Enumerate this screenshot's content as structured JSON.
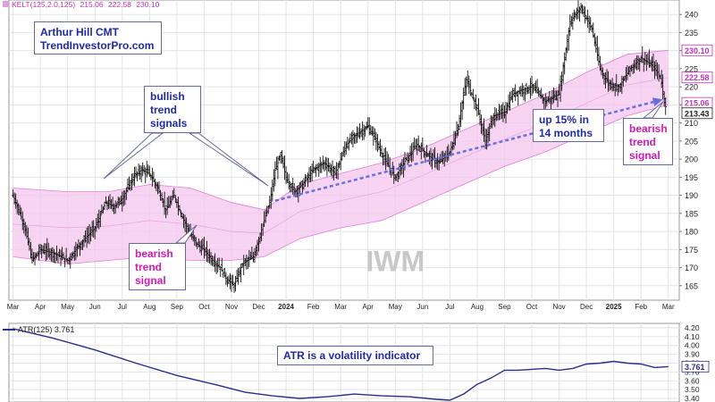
{
  "chart_data": [
    {
      "type": "candlestick",
      "symbol": "IWM",
      "overlay_label": "KELT(125,2.0,125)",
      "overlay_values": [
        "215.06",
        "222.58",
        "230.10"
      ],
      "ylim": [
        161,
        244
      ],
      "yticks": [
        165,
        170,
        175,
        180,
        185,
        190,
        195,
        200,
        205,
        210,
        215,
        220,
        225,
        230,
        235,
        240
      ],
      "xticks": [
        {
          "label": "Mar",
          "x": 0.0,
          "bold": false
        },
        {
          "label": "Apr",
          "x": 1.0,
          "bold": false
        },
        {
          "label": "May",
          "x": 2.0,
          "bold": false
        },
        {
          "label": "Jun",
          "x": 3.0,
          "bold": false
        },
        {
          "label": "Jul",
          "x": 4.0,
          "bold": false
        },
        {
          "label": "Aug",
          "x": 5.0,
          "bold": false
        },
        {
          "label": "Sep",
          "x": 6.0,
          "bold": false
        },
        {
          "label": "Oct",
          "x": 7.0,
          "bold": false
        },
        {
          "label": "Nov",
          "x": 8.0,
          "bold": false
        },
        {
          "label": "Dec",
          "x": 9.0,
          "bold": false
        },
        {
          "label": "2024",
          "x": 10.0,
          "bold": true
        },
        {
          "label": "Feb",
          "x": 11.0,
          "bold": false
        },
        {
          "label": "Mar",
          "x": 12.0,
          "bold": false
        },
        {
          "label": "Apr",
          "x": 13.0,
          "bold": false
        },
        {
          "label": "May",
          "x": 14.0,
          "bold": false
        },
        {
          "label": "Jun",
          "x": 15.0,
          "bold": false
        },
        {
          "label": "Jul",
          "x": 16.0,
          "bold": false
        },
        {
          "label": "Aug",
          "x": 17.0,
          "bold": false
        },
        {
          "label": "Sep",
          "x": 18.0,
          "bold": false
        },
        {
          "label": "Oct",
          "x": 19.0,
          "bold": false
        },
        {
          "label": "Nov",
          "x": 20.0,
          "bold": false
        },
        {
          "label": "Dec",
          "x": 21.0,
          "bold": false
        },
        {
          "label": "2025",
          "x": 22.0,
          "bold": true
        },
        {
          "label": "Feb",
          "x": 23.0,
          "bold": false
        },
        {
          "label": "Mar",
          "x": 24.0,
          "bold": false
        }
      ],
      "price_path": [
        [
          0.0,
          190
        ],
        [
          0.4,
          182
        ],
        [
          0.7,
          172
        ],
        [
          1.0,
          175
        ],
        [
          1.5,
          174
        ],
        [
          2.0,
          172
        ],
        [
          2.5,
          177
        ],
        [
          3.0,
          181
        ],
        [
          3.4,
          188
        ],
        [
          3.7,
          187
        ],
        [
          4.0,
          189
        ],
        [
          4.4,
          195
        ],
        [
          4.7,
          197
        ],
        [
          5.0,
          196
        ],
        [
          5.3,
          192
        ],
        [
          5.6,
          186
        ],
        [
          5.9,
          190
        ],
        [
          6.2,
          184
        ],
        [
          6.5,
          179
        ],
        [
          6.8,
          176
        ],
        [
          7.0,
          175
        ],
        [
          7.3,
          172
        ],
        [
          7.6,
          170
        ],
        [
          7.8,
          167
        ],
        [
          8.1,
          165
        ],
        [
          8.4,
          171
        ],
        [
          8.8,
          173
        ],
        [
          9.0,
          178
        ],
        [
          9.2,
          183
        ],
        [
          9.4,
          188
        ],
        [
          9.6,
          197
        ],
        [
          9.8,
          201
        ],
        [
          10.0,
          195
        ],
        [
          10.3,
          191
        ],
        [
          10.6,
          193
        ],
        [
          11.0,
          197
        ],
        [
          11.4,
          199
        ],
        [
          11.8,
          196
        ],
        [
          12.2,
          204
        ],
        [
          12.6,
          207
        ],
        [
          13.0,
          209
        ],
        [
          13.3,
          205
        ],
        [
          13.6,
          200
        ],
        [
          14.0,
          195
        ],
        [
          14.4,
          200
        ],
        [
          14.8,
          204
        ],
        [
          15.2,
          201
        ],
        [
          15.6,
          199
        ],
        [
          16.0,
          202
        ],
        [
          16.3,
          209
        ],
        [
          16.6,
          222
        ],
        [
          17.0,
          214
        ],
        [
          17.3,
          205
        ],
        [
          17.6,
          212
        ],
        [
          18.0,
          213
        ],
        [
          18.3,
          218
        ],
        [
          18.6,
          219
        ],
        [
          19.0,
          220
        ],
        [
          19.5,
          216
        ],
        [
          20.0,
          218
        ],
        [
          20.4,
          238
        ],
        [
          20.8,
          242
        ],
        [
          21.2,
          236
        ],
        [
          21.5,
          225
        ],
        [
          21.8,
          221
        ],
        [
          22.2,
          220
        ],
        [
          22.6,
          225
        ],
        [
          23.0,
          228
        ],
        [
          23.4,
          226
        ],
        [
          23.7,
          223
        ],
        [
          23.9,
          214.5
        ]
      ],
      "band": {
        "color": "#f4c6ee",
        "upper": [
          [
            0.0,
            192
          ],
          [
            2.0,
            191
          ],
          [
            3.5,
            191
          ],
          [
            5.0,
            193
          ],
          [
            6.5,
            192
          ],
          [
            8.0,
            188
          ],
          [
            9.2,
            186
          ],
          [
            10.5,
            193
          ],
          [
            12.0,
            196
          ],
          [
            13.5,
            199
          ],
          [
            15.0,
            203
          ],
          [
            16.5,
            208
          ],
          [
            18.0,
            213
          ],
          [
            19.5,
            218
          ],
          [
            21.0,
            224
          ],
          [
            22.5,
            229
          ],
          [
            24.0,
            230.1
          ]
        ],
        "lower": [
          [
            0.0,
            173
          ],
          [
            2.0,
            171
          ],
          [
            3.5,
            172
          ],
          [
            5.0,
            173
          ],
          [
            6.5,
            172
          ],
          [
            8.0,
            172
          ],
          [
            9.2,
            173
          ],
          [
            10.5,
            178
          ],
          [
            12.0,
            181
          ],
          [
            13.5,
            183
          ],
          [
            15.0,
            188
          ],
          [
            16.5,
            193
          ],
          [
            18.0,
            198
          ],
          [
            19.5,
            202
          ],
          [
            21.0,
            207
          ],
          [
            22.5,
            212
          ],
          [
            24.0,
            215.06
          ]
        ],
        "middle": [
          [
            0.0,
            182
          ],
          [
            2.0,
            181
          ],
          [
            3.5,
            181.5
          ],
          [
            5.0,
            183
          ],
          [
            6.5,
            182
          ],
          [
            8.0,
            180
          ],
          [
            9.2,
            179.5
          ],
          [
            10.5,
            185.5
          ],
          [
            12.0,
            188.5
          ],
          [
            13.5,
            191
          ],
          [
            15.0,
            195.5
          ],
          [
            16.5,
            200.5
          ],
          [
            18.0,
            205.5
          ],
          [
            19.5,
            210
          ],
          [
            21.0,
            215.5
          ],
          [
            22.5,
            220.5
          ],
          [
            24.0,
            222.58
          ]
        ]
      },
      "trend_arrow": {
        "from": [
          9.6,
          188.5
        ],
        "to": [
          23.8,
          216.5
        ],
        "color": "#6a6fe0"
      },
      "price_flags": [
        {
          "text": "230.10",
          "y": 230.1,
          "color": "#c233b4"
        },
        {
          "text": "222.58",
          "y": 222.58,
          "color": "#c233b4"
        },
        {
          "text": "215.06",
          "y": 215.06,
          "color": "#c233b4"
        },
        {
          "text": "213.43",
          "y": 213.43,
          "color": "#222222"
        }
      ],
      "watermark": "IWM"
    },
    {
      "type": "line",
      "indicator_label": "ATR(125) 3.761",
      "ylim": [
        3.36,
        4.25
      ],
      "yticks": [
        4.2,
        4.1,
        4.0,
        3.9,
        3.8,
        3.7,
        3.6,
        3.5,
        3.4
      ],
      "line_color": "#2a2f86",
      "series": [
        [
          0.0,
          4.19
        ],
        [
          1.5,
          4.08
        ],
        [
          3.0,
          3.95
        ],
        [
          4.5,
          3.8
        ],
        [
          6.0,
          3.66
        ],
        [
          7.5,
          3.55
        ],
        [
          8.5,
          3.47
        ],
        [
          9.5,
          3.43
        ],
        [
          10.5,
          3.4
        ],
        [
          11.5,
          3.42
        ],
        [
          12.5,
          3.45
        ],
        [
          13.5,
          3.43
        ],
        [
          14.5,
          3.42
        ],
        [
          15.5,
          3.39
        ],
        [
          16.0,
          3.38
        ],
        [
          16.5,
          3.45
        ],
        [
          17.0,
          3.56
        ],
        [
          17.5,
          3.63
        ],
        [
          18.0,
          3.72
        ],
        [
          18.5,
          3.72
        ],
        [
          19.0,
          3.73
        ],
        [
          19.5,
          3.74
        ],
        [
          20.0,
          3.72
        ],
        [
          20.5,
          3.74
        ],
        [
          21.0,
          3.79
        ],
        [
          21.5,
          3.8
        ],
        [
          22.0,
          3.82
        ],
        [
          22.5,
          3.8
        ],
        [
          23.0,
          3.79
        ],
        [
          23.5,
          3.75
        ],
        [
          24.0,
          3.761
        ]
      ],
      "flag": {
        "text": "3.761",
        "y": 3.761,
        "color": "#2a2f86"
      }
    }
  ],
  "annotations": {
    "author": "Arthur Hill CMT\nTrendInvestorPro.com",
    "bullish": "bullish\ntrend\nsignals",
    "bearish_left": "bearish\ntrend\nsignal",
    "bearish_right": "bearish\ntrend\nsignal",
    "gain": "up 15% in\n14 months",
    "atr_note": "ATR is a volatility indicator"
  }
}
